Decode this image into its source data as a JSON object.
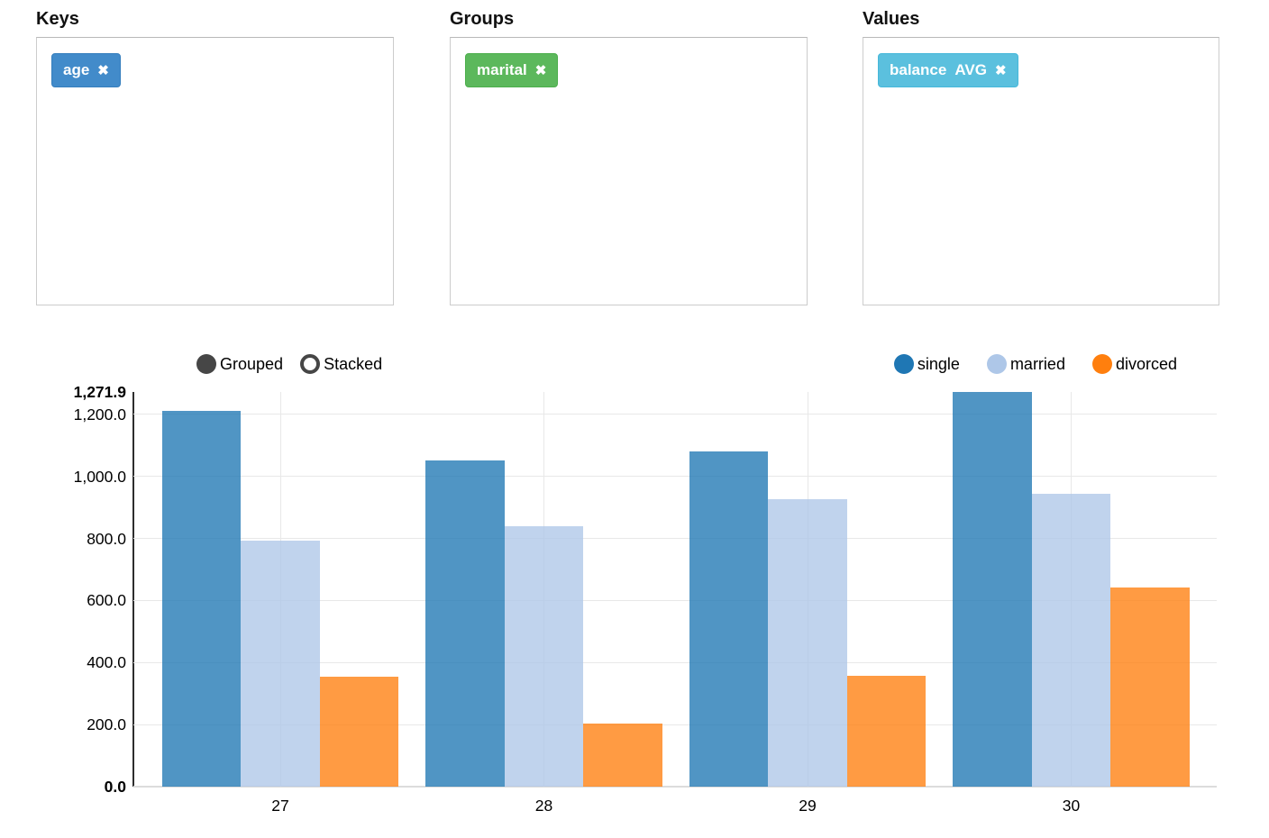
{
  "panels": {
    "keys": {
      "label": "Keys",
      "tag": {
        "text": "age",
        "remove_icon": "✖",
        "bg": "#428bca",
        "border": "#357ebd"
      }
    },
    "groups": {
      "label": "Groups",
      "tag": {
        "text": "marital",
        "remove_icon": "✖",
        "bg": "#5cb85c",
        "border": "#4cae4c"
      }
    },
    "values": {
      "label": "Values",
      "tag": {
        "text": "balance AVG",
        "remove_icon": "✖",
        "bg": "#5bc0de",
        "border": "#46b8da"
      }
    }
  },
  "chart": {
    "mode_toggle": {
      "grouped_label": "Grouped",
      "stacked_label": "Stacked",
      "selected": "Grouped"
    }
  },
  "chart_data": {
    "type": "bar",
    "bar_mode": "grouped",
    "title": "",
    "xlabel": "",
    "ylabel": "",
    "categories": [
      "27",
      "28",
      "29",
      "30"
    ],
    "series": [
      {
        "name": "single",
        "color": "#1f77b4",
        "bar_color": "rgba(31,119,180,0.78)",
        "values": [
          1210,
          1050,
          1080,
          1271.9
        ]
      },
      {
        "name": "married",
        "color": "#aec7e8",
        "bar_color": "rgba(174,199,232,0.78)",
        "values": [
          792,
          838,
          926,
          944
        ]
      },
      {
        "name": "divorced",
        "color": "#ff7f0e",
        "bar_color": "rgba(255,127,14,0.78)",
        "values": [
          354,
          204,
          357,
          641
        ]
      }
    ],
    "ylim": [
      0,
      1271.9
    ],
    "y_ticks": [
      {
        "value": 0,
        "label": "0.0",
        "bold": true
      },
      {
        "value": 200,
        "label": "200.0",
        "bold": false
      },
      {
        "value": 400,
        "label": "400.0",
        "bold": false
      },
      {
        "value": 600,
        "label": "600.0",
        "bold": false
      },
      {
        "value": 800,
        "label": "800.0",
        "bold": false
      },
      {
        "value": 1000,
        "label": "1,000.0",
        "bold": false
      },
      {
        "value": 1200,
        "label": "1,200.0",
        "bold": false
      },
      {
        "value": 1271.9,
        "label": "1,271.9",
        "bold": true
      }
    ],
    "grid": true,
    "legend_position": "top-right"
  }
}
